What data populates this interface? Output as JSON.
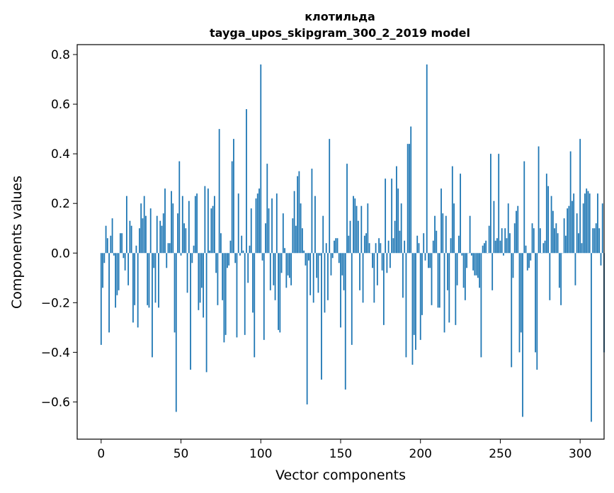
{
  "chart_data": {
    "type": "bar",
    "title": "клотильда",
    "subtitle": "tayga_upos_skipgram_300_2_2019 model",
    "xlabel": "Vector components",
    "ylabel": "Components values",
    "xlim": [
      -15,
      315
    ],
    "ylim": [
      -0.75,
      0.84
    ],
    "xticks": [
      0,
      50,
      100,
      150,
      200,
      250,
      300
    ],
    "yticks": [
      -0.6,
      -0.4,
      -0.2,
      0.0,
      0.2,
      0.4,
      0.6,
      0.8
    ],
    "ytick_labels": [
      "−0.6",
      "−0.4",
      "−0.2",
      "0.0",
      "0.2",
      "0.4",
      "0.6",
      "0.8"
    ],
    "bar_color": "#1f77b4",
    "grid": false,
    "values": [
      -0.37,
      -0.14,
      -0.04,
      0.11,
      0.06,
      -0.32,
      0.07,
      0.14,
      -0.01,
      -0.22,
      -0.17,
      -0.15,
      0.08,
      0.08,
      -0.02,
      -0.07,
      0.23,
      -0.13,
      0.13,
      0.11,
      -0.28,
      -0.21,
      0.03,
      -0.3,
      0.1,
      0.2,
      0.14,
      0.23,
      0.15,
      -0.21,
      -0.22,
      0.18,
      -0.42,
      -0.06,
      -0.2,
      0.15,
      -0.22,
      0.13,
      0.11,
      0.16,
      0.26,
      -0.06,
      0.04,
      0.04,
      0.25,
      0.2,
      -0.32,
      -0.64,
      0.16,
      0.37,
      -0.01,
      0.23,
      0.12,
      0.1,
      -0.16,
      0.21,
      -0.47,
      -0.04,
      0.03,
      0.23,
      0.24,
      -0.23,
      -0.2,
      -0.14,
      -0.26,
      0.27,
      -0.48,
      0.26,
      0.01,
      0.18,
      0.19,
      0.23,
      -0.08,
      -0.21,
      0.5,
      0.08,
      -0.19,
      -0.36,
      -0.33,
      -0.06,
      -0.05,
      0.05,
      0.37,
      0.46,
      -0.04,
      -0.34,
      0.24,
      -0.01,
      0.07,
      0.01,
      -0.33,
      0.58,
      -0.12,
      0.03,
      0.18,
      -0.24,
      -0.42,
      0.22,
      0.24,
      0.26,
      0.76,
      -0.03,
      -0.35,
      0.12,
      0.36,
      0.18,
      -0.15,
      0.22,
      -0.13,
      -0.19,
      0.24,
      -0.31,
      -0.32,
      -0.08,
      0.16,
      0.02,
      -0.14,
      -0.09,
      -0.1,
      -0.13,
      0.14,
      0.25,
      0.11,
      0.31,
      0.33,
      0.2,
      0.1,
      0.01,
      -0.05,
      -0.61,
      -0.03,
      -0.17,
      0.34,
      -0.2,
      0.23,
      -0.1,
      -0.16,
      -0.01,
      -0.51,
      0.15,
      -0.24,
      0.04,
      -0.19,
      0.46,
      -0.09,
      -0.02,
      0.05,
      0.06,
      0.06,
      -0.04,
      -0.3,
      -0.09,
      -0.15,
      -0.55,
      0.36,
      0.07,
      0.13,
      -0.37,
      0.23,
      0.22,
      0.19,
      0.13,
      -0.15,
      0.19,
      -0.2,
      0.07,
      0.08,
      0.2,
      0.04,
      0.0,
      -0.06,
      -0.2,
      0.04,
      -0.13,
      0.06,
      0.04,
      -0.07,
      -0.29,
      0.3,
      -0.08,
      0.05,
      -0.06,
      0.3,
      0.06,
      0.13,
      0.35,
      0.26,
      0.09,
      0.2,
      -0.18,
      0.05,
      -0.42,
      0.44,
      0.44,
      0.51,
      -0.45,
      -0.33,
      -0.39,
      0.07,
      0.04,
      -0.35,
      -0.25,
      0.08,
      -0.03,
      0.76,
      -0.06,
      -0.06,
      -0.21,
      0.05,
      0.15,
      0.09,
      -0.22,
      -0.22,
      0.26,
      0.16,
      -0.32,
      0.15,
      -0.15,
      -0.28,
      0.06,
      0.35,
      0.2,
      -0.29,
      -0.13,
      0.07,
      0.32,
      -0.01,
      -0.14,
      -0.19,
      -0.06,
      0.0,
      0.15,
      -0.01,
      -0.07,
      -0.09,
      -0.09,
      -0.1,
      -0.14,
      -0.42,
      0.03,
      0.04,
      0.05,
      0.0,
      0.11,
      0.4,
      -0.15,
      0.21,
      0.05,
      0.06,
      0.4,
      0.05,
      0.1,
      -0.01,
      0.1,
      0.06,
      0.2,
      0.08,
      -0.46,
      -0.1,
      0.12,
      0.17,
      0.19,
      -0.4,
      -0.32,
      -0.66,
      0.37,
      0.03,
      -0.07,
      -0.06,
      -0.03,
      0.12,
      0.1,
      -0.4,
      -0.47,
      0.43,
      0.1,
      0.0,
      0.04,
      0.05,
      0.32,
      0.27,
      -0.19,
      0.23,
      0.17,
      0.1,
      0.12,
      0.08,
      -0.14,
      -0.21,
      0.0,
      0.14,
      0.07,
      0.18,
      0.19,
      0.41,
      0.21,
      0.24,
      -0.13,
      0.16,
      0.08,
      0.46,
      0.04,
      0.2,
      0.24,
      0.26,
      0.25,
      0.24,
      -0.68,
      0.1,
      0.1,
      0.12,
      0.24,
      0.1,
      -0.05,
      0.2,
      -0.4
    ]
  }
}
